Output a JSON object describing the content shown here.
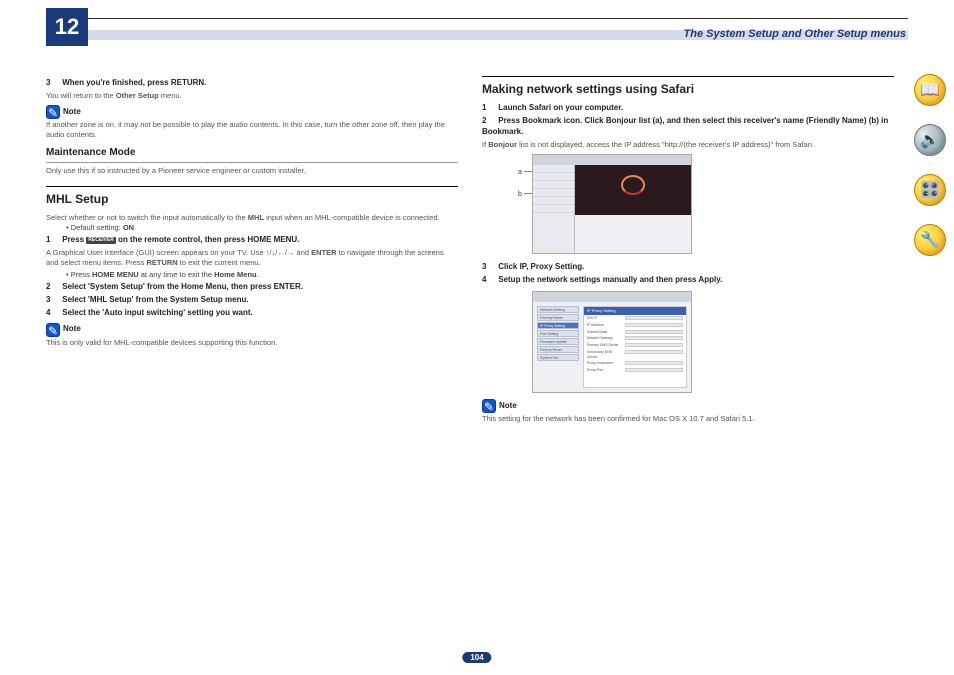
{
  "chapter_number": "12",
  "header_title": "The System Setup and Other Setup menus",
  "page_number": "104",
  "colors": {
    "brand_blue": "#1a3a7a",
    "stripe": "#d7dae8",
    "note_icon_bg": "#1158c4",
    "side_icon_yellow_light": "#fff176",
    "side_icon_yellow_dark": "#fbc02d",
    "side_icon_gray_light": "#eceff1",
    "side_icon_gray_dark": "#90a4ae"
  },
  "left_col": {
    "step3_num": "3",
    "step3_text": "When you're finished, press RETURN.",
    "step3_detail_a": "You will return to the ",
    "step3_bold": "Other Setup",
    "step3_detail_b": " menu.",
    "note1_label": "Note",
    "note1_text": "If another zone is on, it may not be possible to play the audio contents. In this case, turn the other zone off, then play the audio contents.",
    "maintenance_heading": "Maintenance Mode",
    "maintenance_text": "Only use this if so instructed by a Pioneer service engineer or custom installer.",
    "mhl_heading": "MHL Setup",
    "mhl_intro_a": "Select whether or not to switch the input automatically to the ",
    "mhl_intro_bold": "MHL",
    "mhl_intro_b": " input when an MHL-compatible device is connected.",
    "mhl_default_a": "Default setting: ",
    "mhl_default_bold": "ON",
    "mhl_s1_num": "1",
    "mhl_s1_pre": "Press ",
    "mhl_s1_badge": "RECEIVER",
    "mhl_s1_post": " on the remote control, then press HOME MENU.",
    "mhl_s1_detail_a": "A Graphical User Interface (GUI) screen appears on your TV. Use ↑/↓/←/→ and ",
    "mhl_s1_detail_bold1": "ENTER",
    "mhl_s1_detail_b": " to navigate through the screens and select menu items. Press ",
    "mhl_s1_detail_bold2": "RETURN",
    "mhl_s1_detail_c": " to exit the current menu.",
    "mhl_s1_bullet_a": "Press ",
    "mhl_s1_bullet_bold": "HOME MENU",
    "mhl_s1_bullet_b": " at any time to exit the ",
    "mhl_s1_bullet_bold2": "Home Menu",
    "mhl_s1_bullet_c": ".",
    "mhl_s2_num": "2",
    "mhl_s2_text": "Select 'System Setup' from the Home Menu, then press ENTER.",
    "mhl_s3_num": "3",
    "mhl_s3_text": "Select 'MHL Setup' from the System Setup menu.",
    "mhl_s4_num": "4",
    "mhl_s4_text": "Select the 'Auto input switching' setting you want.",
    "note2_label": "Note",
    "note2_text": "This is only valid for MHL-compatible devices supporting this function."
  },
  "right_col": {
    "heading": "Making network settings using Safari",
    "s1_num": "1",
    "s1_text": "Launch Safari on your computer.",
    "s2_num": "2",
    "s2_text": "Press Bookmark icon. Click Bonjour list (a), and then select this receiver's name (Friendly Name) (b) in Bookmark.",
    "s2_detail_a": "If ",
    "s2_detail_bold": "Bonjour",
    "s2_detail_b": " list is not displayed, access the IP address \"http://(the receiver's IP address)\" from Safari.",
    "label_a": "a",
    "label_b": "b",
    "s3_num": "3",
    "s3_text": "Click IP, Proxy Setting.",
    "s4_num": "4",
    "s4_text": "Setup the network settings manually and then press Apply.",
    "note_label": "Note",
    "note_text": "This setting for the network has been confirmed for Mac OS X 10.7 and Safari 5.1.",
    "ss2_nav": [
      "Network Setting",
      "Friendly Name",
      "IP Proxy Setting",
      "Port Setting",
      "Firmware Update",
      "Factory Reset",
      "System Info"
    ],
    "ss2_panel_title": "IP Proxy Setting",
    "ss2_rows": [
      "DHCP",
      "IP Address",
      "Subnet Mask",
      "Default Gateway",
      "Primary DNS Server",
      "Secondary DNS Server",
      "Proxy Hostname",
      "Proxy Port"
    ]
  },
  "side_icons": [
    "book-icon",
    "speaker-icon",
    "help-icon",
    "guide-icon"
  ]
}
